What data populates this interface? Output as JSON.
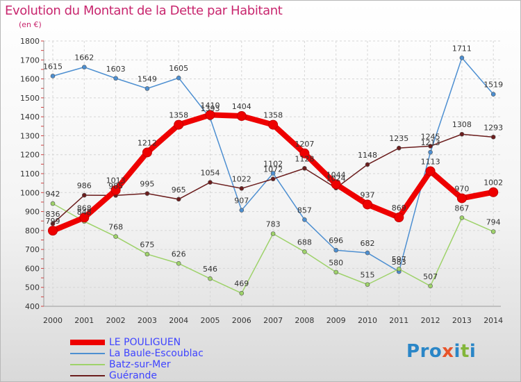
{
  "header": {
    "title": "Evolution du Montant de la Dette par Habitant",
    "subtitle": "(en €)"
  },
  "logo": {
    "text": "Proxiti",
    "letter_colors": [
      "#2a86c7",
      "#2a86c7",
      "#2a86c7",
      "#e8542a",
      "#2a86c7",
      "#83b63a",
      "#2a86c7"
    ]
  },
  "chart_data": {
    "type": "line",
    "title": "Evolution du Montant de la Dette par Habitant",
    "subtitle": "(en €)",
    "x": [
      "2000",
      "2001",
      "2002",
      "2003",
      "2004",
      "2005",
      "2006",
      "2007",
      "2008",
      "2009",
      "2010",
      "2011",
      "2012",
      "2013",
      "2014"
    ],
    "ylim": [
      400,
      1800
    ],
    "yticks": [
      400,
      500,
      600,
      700,
      800,
      900,
      1000,
      1100,
      1200,
      1300,
      1400,
      1500,
      1600,
      1700,
      1800
    ],
    "grid": true,
    "legend_position": "bottom-left",
    "series": [
      {
        "name": "La Baule-Escoublac",
        "color": "#4d8fd1",
        "values": [
          1615,
          1662,
          1603,
          1549,
          1605,
          1393,
          907,
          1102,
          857,
          696,
          682,
          583,
          1213,
          1711,
          1519
        ]
      },
      {
        "name": "Batz-sur-Mer",
        "color": "#9ed26a",
        "values": [
          942,
          848,
          768,
          675,
          626,
          546,
          469,
          783,
          688,
          580,
          515,
          597,
          507,
          867,
          794
        ]
      },
      {
        "name": "Guérande",
        "color": "#6b1d1d",
        "values": [
          836,
          986,
          985,
          995,
          965,
          1054,
          1022,
          1072,
          1128,
          1024,
          1148,
          1235,
          1245,
          1308,
          1293
        ]
      },
      {
        "name": "LE POULIGUEN",
        "color": "#ee0000",
        "values": [
          799,
          868,
          1013,
          1212,
          1358,
          1410,
          1404,
          1358,
          1207,
          1044,
          937,
          869,
          1113,
          970,
          1002
        ]
      }
    ],
    "legend": [
      "LE POULIGUEN",
      "La Baule-Escoublac",
      "Batz-sur-Mer",
      "Guérande"
    ]
  }
}
